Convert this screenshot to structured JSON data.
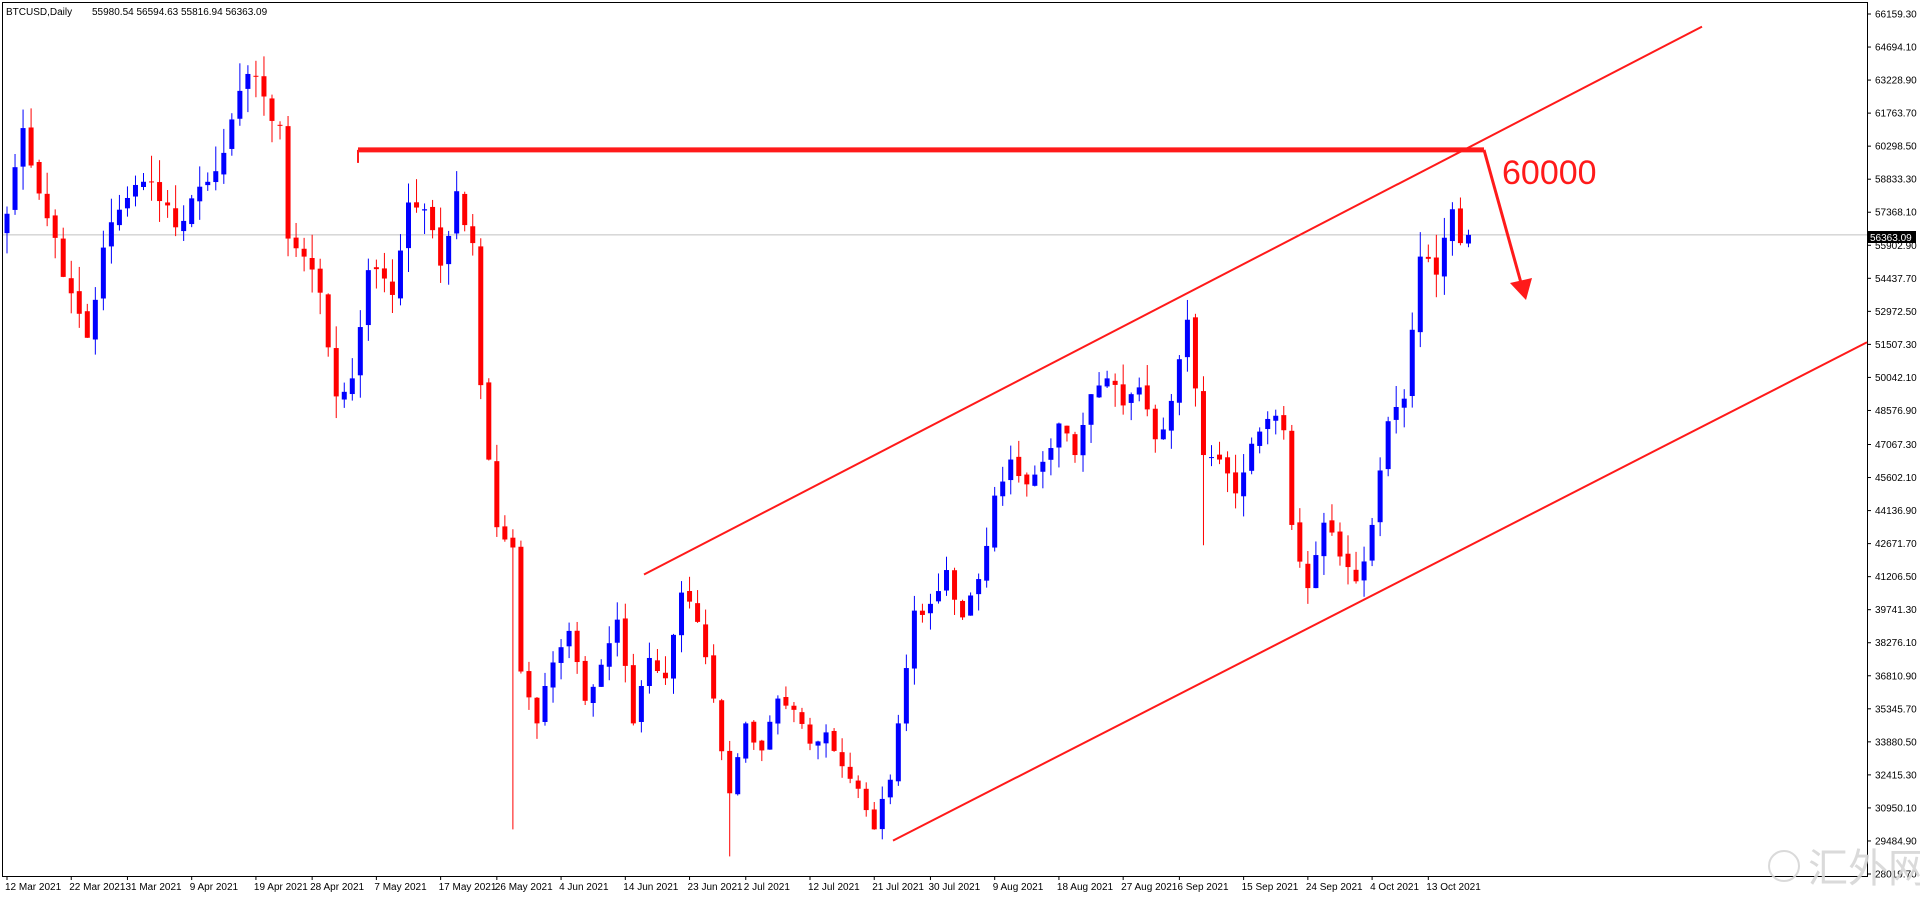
{
  "chart_data": {
    "type": "candlestick",
    "symbol": "BTCUSD,Daily",
    "ohlc_header": "55980.54 56594.63 55816.94 56363.09",
    "last_price": "56363.09",
    "y_range": [
      28000,
      66500
    ],
    "y_tick_labels": [
      "66159.30",
      "64694.10",
      "63228.90",
      "61763.70",
      "60298.50",
      "58833.30",
      "57368.10",
      "55902.90",
      "54437.70",
      "52972.50",
      "51507.30",
      "50042.10",
      "48576.90",
      "47067.30",
      "45602.10",
      "44136.90",
      "42671.70",
      "41206.50",
      "39741.30",
      "38276.10",
      "36810.90",
      "35345.70",
      "33880.50",
      "32415.30",
      "30950.10",
      "29484.90",
      "28019.70"
    ],
    "x_tick_labels": [
      "12 Mar 2021",
      "22 Mar 2021",
      "31 Mar 2021",
      "9 Apr 2021",
      "19 Apr 2021",
      "28 Apr 2021",
      "7 May 2021",
      "17 May 2021",
      "26 May 2021",
      "4 Jun 2021",
      "14 Jun 2021",
      "23 Jun 2021",
      "2 Jul 2021",
      "12 Jul 2021",
      "21 Jul 2021",
      "30 Jul 2021",
      "9 Aug 2021",
      "18 Aug 2021",
      "27 Aug 2021",
      "6 Sep 2021",
      "15 Sep 2021",
      "24 Sep 2021",
      "4 Oct 2021",
      "13 Oct 2021"
    ],
    "anchors": [
      {
        "d": 0,
        "c": 57300
      },
      {
        "d": 2,
        "c": 61100
      },
      {
        "d": 4,
        "c": 58200
      },
      {
        "d": 7,
        "c": 54500
      },
      {
        "d": 10,
        "c": 51800
      },
      {
        "d": 12,
        "c": 55800
      },
      {
        "d": 15,
        "c": 58000
      },
      {
        "d": 18,
        "c": 58700
      },
      {
        "d": 21,
        "c": 56700
      },
      {
        "d": 24,
        "c": 58500
      },
      {
        "d": 27,
        "c": 60000
      },
      {
        "d": 30,
        "c": 63500
      },
      {
        "d": 32,
        "c": 62500
      },
      {
        "d": 34,
        "c": 61200
      },
      {
        "d": 35,
        "c": 56200
      },
      {
        "d": 37,
        "c": 55400
      },
      {
        "d": 39,
        "c": 53800
      },
      {
        "d": 41,
        "c": 49200
      },
      {
        "d": 43,
        "c": 50000
      },
      {
        "d": 45,
        "c": 54800
      },
      {
        "d": 48,
        "c": 53700
      },
      {
        "d": 50,
        "c": 57800
      },
      {
        "d": 52,
        "c": 57500
      },
      {
        "d": 54,
        "c": 55000
      },
      {
        "d": 56,
        "c": 58300
      },
      {
        "d": 58,
        "c": 56000
      },
      {
        "d": 59,
        "c": 49700
      },
      {
        "d": 61,
        "c": 43400
      },
      {
        "d": 63,
        "c": 42500
      },
      {
        "d": 64,
        "c": 37000
      },
      {
        "d": 66,
        "c": 34700
      },
      {
        "d": 68,
        "c": 37400
      },
      {
        "d": 70,
        "c": 38800
      },
      {
        "d": 72,
        "c": 35700
      },
      {
        "d": 74,
        "c": 37300
      },
      {
        "d": 76,
        "c": 39300
      },
      {
        "d": 78,
        "c": 34700
      },
      {
        "d": 80,
        "c": 37600
      },
      {
        "d": 82,
        "c": 36700
      },
      {
        "d": 84,
        "c": 40500
      },
      {
        "d": 86,
        "c": 39200
      },
      {
        "d": 88,
        "c": 35800
      },
      {
        "d": 90,
        "c": 31600
      },
      {
        "d": 92,
        "c": 34700
      },
      {
        "d": 94,
        "c": 33500
      },
      {
        "d": 96,
        "c": 35800
      },
      {
        "d": 98,
        "c": 35300
      },
      {
        "d": 100,
        "c": 33800
      },
      {
        "d": 102,
        "c": 34300
      },
      {
        "d": 104,
        "c": 32800
      },
      {
        "d": 106,
        "c": 31800
      },
      {
        "d": 108,
        "c": 30000
      },
      {
        "d": 110,
        "c": 32200
      },
      {
        "d": 111,
        "c": 34700
      },
      {
        "d": 113,
        "c": 39700
      },
      {
        "d": 115,
        "c": 40000
      },
      {
        "d": 117,
        "c": 41500
      },
      {
        "d": 119,
        "c": 39400
      },
      {
        "d": 121,
        "c": 41100
      },
      {
        "d": 123,
        "c": 44800
      },
      {
        "d": 125,
        "c": 46400
      },
      {
        "d": 127,
        "c": 45300
      },
      {
        "d": 129,
        "c": 46300
      },
      {
        "d": 131,
        "c": 48000
      },
      {
        "d": 133,
        "c": 46600
      },
      {
        "d": 135,
        "c": 49300
      },
      {
        "d": 137,
        "c": 50000
      },
      {
        "d": 139,
        "c": 48800
      },
      {
        "d": 141,
        "c": 49600
      },
      {
        "d": 143,
        "c": 47300
      },
      {
        "d": 145,
        "c": 49000
      },
      {
        "d": 147,
        "c": 52600
      },
      {
        "d": 149,
        "c": 46600
      },
      {
        "d": 151,
        "c": 46400
      },
      {
        "d": 153,
        "c": 44900
      },
      {
        "d": 155,
        "c": 47100
      },
      {
        "d": 157,
        "c": 48200
      },
      {
        "d": 159,
        "c": 47700
      },
      {
        "d": 160,
        "c": 43500
      },
      {
        "d": 162,
        "c": 40700
      },
      {
        "d": 164,
        "c": 43600
      },
      {
        "d": 166,
        "c": 42100
      },
      {
        "d": 168,
        "c": 41000
      },
      {
        "d": 170,
        "c": 43500
      },
      {
        "d": 172,
        "c": 48100
      },
      {
        "d": 174,
        "c": 49100
      },
      {
        "d": 176,
        "c": 55400
      },
      {
        "d": 178,
        "c": 54600
      },
      {
        "d": 180,
        "c": 57500
      },
      {
        "d": 181,
        "c": 56000
      },
      {
        "d": 182,
        "c": 56363
      }
    ],
    "resistance_label": "60000",
    "colors": {
      "bull": "#0000ff",
      "bear": "#ff0000",
      "annotation": "#ff1a1a",
      "frame": "#000000",
      "last_line": "#c0c0c0"
    },
    "watermark": "汇外网",
    "grid": false
  }
}
